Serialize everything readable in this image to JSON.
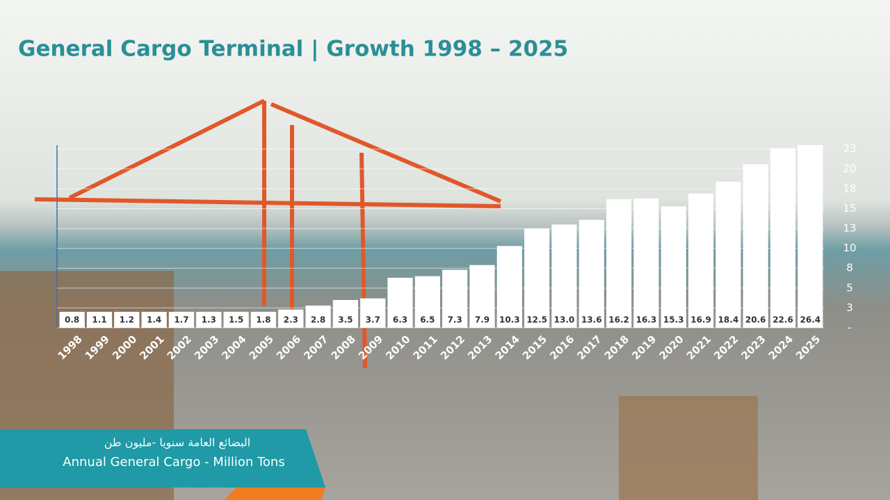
{
  "chart_data": {
    "type": "bar",
    "title": "General Cargo Terminal | Growth  1998 – 2025",
    "subtitle_arabic": "البضائع العامة سنويا -مليون طن",
    "subtitle": "Annual General Cargo - Million Tons",
    "categories": [
      "1998",
      "1999",
      "2000",
      "2001",
      "2002",
      "2003",
      "2004",
      "2005",
      "2006",
      "2007",
      "2008",
      "2009",
      "2010",
      "2011",
      "2012",
      "2013",
      "2014",
      "2015",
      "2016",
      "2017",
      "2018",
      "2019",
      "2020",
      "2021",
      "2022",
      "2023",
      "2024",
      "2025"
    ],
    "values": [
      0.8,
      1.1,
      1.2,
      1.4,
      1.7,
      1.3,
      1.5,
      1.8,
      2.3,
      2.8,
      3.5,
      3.7,
      6.3,
      6.5,
      7.3,
      7.9,
      10.3,
      12.5,
      13.0,
      13.6,
      16.2,
      16.3,
      15.3,
      16.9,
      18.4,
      20.6,
      22.6,
      26.4
    ],
    "value_labels": [
      "0.8",
      "1.1",
      "1.2",
      "1.4",
      "1.7",
      "1.3",
      "1.5",
      "1.8",
      "2.3",
      "2.8",
      "3.5",
      "3.7",
      "6.3",
      "6.5",
      "7.3",
      "7.9",
      "10.3",
      "12.5",
      "13.0",
      "13.6",
      "16.2",
      "16.3",
      "15.3",
      "16.9",
      "18.4",
      "20.6",
      "22.6",
      "26.4"
    ],
    "color": "#ffffff",
    "ylim": [
      0,
      23
    ],
    "yticks": [
      {
        "value": 0,
        "label": "-"
      },
      {
        "value": 2.5,
        "label": "3"
      },
      5,
      {
        "value": 7.5,
        "label": "8"
      },
      10,
      {
        "value": 12.5,
        "label": "13"
      },
      15,
      {
        "value": 17.5,
        "label": "18"
      },
      20,
      {
        "value": 22.5,
        "label": "23"
      }
    ],
    "grid": true
  }
}
